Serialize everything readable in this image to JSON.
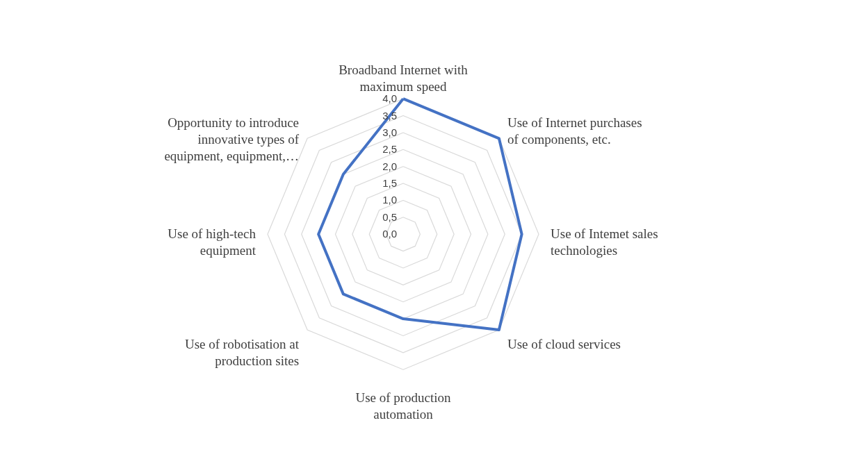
{
  "chart_data": {
    "type": "radar",
    "categories": [
      "Broadband Internet with maximum speed",
      "Use of Internet purchases of components, etc.",
      "Use of Intemet sales technologies",
      "Use of cloud services",
      "Use of production automation",
      "Use of robotisation at production sites",
      "Use of high-tech equipment",
      "Opportunity to introduce innovative types of equipment, equipment,…"
    ],
    "series": [
      {
        "color": "#4472c4",
        "values": [
          4.0,
          4.0,
          3.5,
          4.0,
          2.5,
          2.5,
          2.5,
          2.5
        ]
      }
    ],
    "ylim": [
      0,
      4
    ],
    "yticks": [
      {
        "value": 0,
        "label": "0,0"
      },
      {
        "value": 0.5,
        "label": "0,5"
      },
      {
        "value": 1,
        "label": "1,0"
      },
      {
        "value": 1.5,
        "label": "1,5"
      },
      {
        "value": 2,
        "label": "2,0"
      },
      {
        "value": 2.5,
        "label": "2,5"
      },
      {
        "value": 3,
        "label": "3,0"
      },
      {
        "value": 3.5,
        "label": "3,5"
      },
      {
        "value": 4,
        "label": "4,0"
      }
    ],
    "grid": true,
    "marker": "none",
    "line_style": "solid"
  }
}
